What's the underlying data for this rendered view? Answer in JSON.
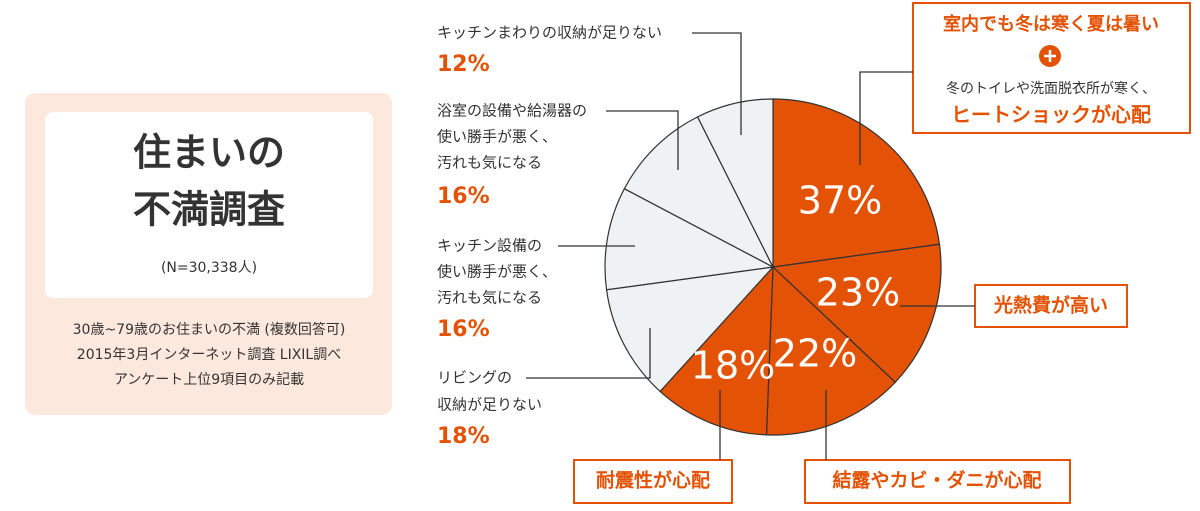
{
  "chart_data": {
    "type": "pie",
    "panel": {
      "title": [
        "住まいの",
        "不満調査"
      ],
      "subtitle": "(N=30,338人)",
      "notes": [
        "30歳~79歳のお住まいの不満 (複数回答可)",
        "2015年3月インターネット調査 LIXIL調べ",
        "アンケート上位9項目のみ記載"
      ]
    },
    "categories": [
      [
        "室内でも冬は寒く夏は暑い",
        "冬のトイレや洗面脱衣所が寒く、",
        "ヒートショックが心配"
      ],
      [
        "光熱費が高い"
      ],
      [
        "結露やカビ・ダニが心配"
      ],
      [
        "耐震性が心配"
      ],
      [
        "リビングの",
        "収納が足りない"
      ],
      [
        "キッチン設備の",
        "使い勝手が悪く、",
        "汚れも気になる"
      ],
      [
        "浴室の設備や給湯器の",
        "使い勝手が悪く、",
        "汚れも気になる"
      ],
      [
        "キッチンまわりの収納が足りない"
      ]
    ],
    "values": [
      37,
      23,
      22,
      18,
      18,
      16,
      16,
      12
    ],
    "value_labels": [
      "37%",
      "23%",
      "22%",
      "18%",
      "18%",
      "16%",
      "16%",
      "12%"
    ],
    "colors": [
      "#e35205",
      "#e35205",
      "#e35205",
      "#e35205",
      "#eef2f4",
      "#eef2f4",
      "#eef2f4",
      "#eef2f4"
    ]
  }
}
